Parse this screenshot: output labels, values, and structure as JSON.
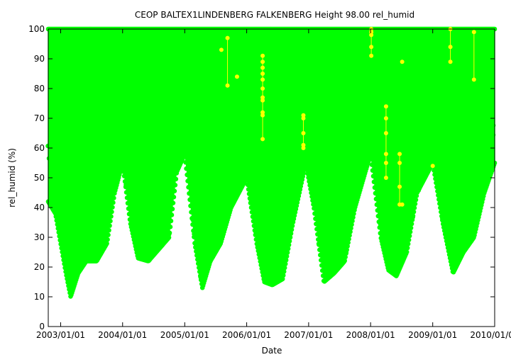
{
  "chart_data": {
    "type": "scatter",
    "title": "CEOP BALTEX1LINDENBERG FALKENBERG Height 98.00 rel_humid",
    "xlabel": "Date",
    "ylabel": "rel_humid (%)",
    "ylim": [
      0,
      100
    ],
    "xlim": [
      "2002-10-20",
      "2010-01-01"
    ],
    "y_ticks": [
      0,
      10,
      20,
      30,
      40,
      50,
      60,
      70,
      80,
      90,
      100
    ],
    "x_ticks": [
      {
        "date": "2003-01-01",
        "label": "2003/01/01"
      },
      {
        "date": "2004-01-01",
        "label": "2004/01/01"
      },
      {
        "date": "2005-01-01",
        "label": "2005/01/01"
      },
      {
        "date": "2006-01-01",
        "label": "2006/01/01"
      },
      {
        "date": "2007-01-01",
        "label": "2007/01/01"
      },
      {
        "date": "2008-01-01",
        "label": "2008/01/01"
      },
      {
        "date": "2009-01-01",
        "label": "2009/01/01"
      },
      {
        "date": "2010-01-01",
        "label": "2010/01/01"
      }
    ],
    "grid": false,
    "series": [
      {
        "color": "#00ff00",
        "data_min_envelope": [
          {
            "x": "2002-10-20",
            "y": 42
          },
          {
            "x": "2002-12-01",
            "y": 38
          },
          {
            "x": "2003-02-01",
            "y": 18
          },
          {
            "x": "2003-03-01",
            "y": 10
          },
          {
            "x": "2003-04-15",
            "y": 18
          },
          {
            "x": "2003-06-01",
            "y": 22
          },
          {
            "x": "2003-08-01",
            "y": 22
          },
          {
            "x": "2003-10-01",
            "y": 28
          },
          {
            "x": "2003-11-15",
            "y": 45
          },
          {
            "x": "2004-01-01",
            "y": 55
          },
          {
            "x": "2004-02-15",
            "y": 35
          },
          {
            "x": "2004-04-01",
            "y": 23
          },
          {
            "x": "2004-06-01",
            "y": 22
          },
          {
            "x": "2004-08-01",
            "y": 26
          },
          {
            "x": "2004-10-01",
            "y": 30
          },
          {
            "x": "2004-11-15",
            "y": 52
          },
          {
            "x": "2005-01-01",
            "y": 58
          },
          {
            "x": "2005-03-01",
            "y": 28
          },
          {
            "x": "2005-04-15",
            "y": 13
          },
          {
            "x": "2005-06-01",
            "y": 22
          },
          {
            "x": "2005-08-01",
            "y": 28
          },
          {
            "x": "2005-10-01",
            "y": 40
          },
          {
            "x": "2006-01-01",
            "y": 50
          },
          {
            "x": "2006-03-01",
            "y": 28
          },
          {
            "x": "2006-04-15",
            "y": 15
          },
          {
            "x": "2006-06-01",
            "y": 14
          },
          {
            "x": "2006-08-01",
            "y": 16
          },
          {
            "x": "2006-10-01",
            "y": 35
          },
          {
            "x": "2006-12-15",
            "y": 55
          },
          {
            "x": "2007-02-01",
            "y": 40
          },
          {
            "x": "2007-04-01",
            "y": 15
          },
          {
            "x": "2007-06-01",
            "y": 18
          },
          {
            "x": "2007-08-01",
            "y": 22
          },
          {
            "x": "2007-10-01",
            "y": 40
          },
          {
            "x": "2008-01-01",
            "y": 58
          },
          {
            "x": "2008-03-01",
            "y": 30
          },
          {
            "x": "2008-04-15",
            "y": 19
          },
          {
            "x": "2008-06-01",
            "y": 17
          },
          {
            "x": "2008-08-01",
            "y": 25
          },
          {
            "x": "2008-10-01",
            "y": 45
          },
          {
            "x": "2009-01-01",
            "y": 55
          },
          {
            "x": "2009-03-01",
            "y": 35
          },
          {
            "x": "2009-05-01",
            "y": 18
          },
          {
            "x": "2009-07-01",
            "y": 25
          },
          {
            "x": "2009-09-01",
            "y": 30
          },
          {
            "x": "2009-11-01",
            "y": 45
          },
          {
            "x": "2010-01-01",
            "y": 55
          }
        ],
        "data_max": 100
      },
      {
        "color": "#ffff00",
        "points": [
          {
            "x": "2005-08-05",
            "y": 93
          },
          {
            "x": "2005-09-10",
            "y": 97
          },
          {
            "x": "2005-09-10",
            "y": 81
          },
          {
            "x": "2005-11-05",
            "y": 84
          },
          {
            "x": "2006-04-05",
            "y": 91
          },
          {
            "x": "2006-04-05",
            "y": 89
          },
          {
            "x": "2006-04-05",
            "y": 87
          },
          {
            "x": "2006-04-05",
            "y": 85
          },
          {
            "x": "2006-04-05",
            "y": 83
          },
          {
            "x": "2006-04-05",
            "y": 80
          },
          {
            "x": "2006-04-05",
            "y": 77
          },
          {
            "x": "2006-04-05",
            "y": 76
          },
          {
            "x": "2006-04-05",
            "y": 72
          },
          {
            "x": "2006-04-05",
            "y": 71
          },
          {
            "x": "2006-04-05",
            "y": 63
          },
          {
            "x": "2006-12-01",
            "y": 71
          },
          {
            "x": "2006-12-01",
            "y": 70
          },
          {
            "x": "2006-12-01",
            "y": 65
          },
          {
            "x": "2006-12-01",
            "y": 61
          },
          {
            "x": "2006-12-01",
            "y": 60
          },
          {
            "x": "2008-01-05",
            "y": 100
          },
          {
            "x": "2008-01-05",
            "y": 99
          },
          {
            "x": "2008-01-05",
            "y": 98
          },
          {
            "x": "2008-01-05",
            "y": 94
          },
          {
            "x": "2008-01-05",
            "y": 91
          },
          {
            "x": "2008-04-01",
            "y": 74
          },
          {
            "x": "2008-04-01",
            "y": 70
          },
          {
            "x": "2008-04-01",
            "y": 65
          },
          {
            "x": "2008-04-01",
            "y": 58
          },
          {
            "x": "2008-04-01",
            "y": 55
          },
          {
            "x": "2008-04-01",
            "y": 50
          },
          {
            "x": "2008-06-20",
            "y": 58
          },
          {
            "x": "2008-06-20",
            "y": 55
          },
          {
            "x": "2008-06-20",
            "y": 47
          },
          {
            "x": "2008-06-20",
            "y": 41
          },
          {
            "x": "2008-07-05",
            "y": 89
          },
          {
            "x": "2008-07-05",
            "y": 41
          },
          {
            "x": "2009-01-01",
            "y": 54
          },
          {
            "x": "2009-04-15",
            "y": 100
          },
          {
            "x": "2009-04-15",
            "y": 94
          },
          {
            "x": "2009-04-15",
            "y": 89
          },
          {
            "x": "2009-09-01",
            "y": 99
          },
          {
            "x": "2009-09-01",
            "y": 83
          }
        ],
        "vertical_links": [
          {
            "x": "2005-09-10",
            "y1": 81,
            "y2": 97
          },
          {
            "x": "2006-04-05",
            "y1": 63,
            "y2": 91
          },
          {
            "x": "2006-12-01",
            "y1": 60,
            "y2": 71
          },
          {
            "x": "2008-01-05",
            "y1": 91,
            "y2": 100
          },
          {
            "x": "2008-04-01",
            "y1": 50,
            "y2": 74
          },
          {
            "x": "2008-06-20",
            "y1": 41,
            "y2": 58
          },
          {
            "x": "2009-04-15",
            "y1": 89,
            "y2": 100
          },
          {
            "x": "2009-09-01",
            "y1": 83,
            "y2": 99
          }
        ]
      }
    ]
  }
}
